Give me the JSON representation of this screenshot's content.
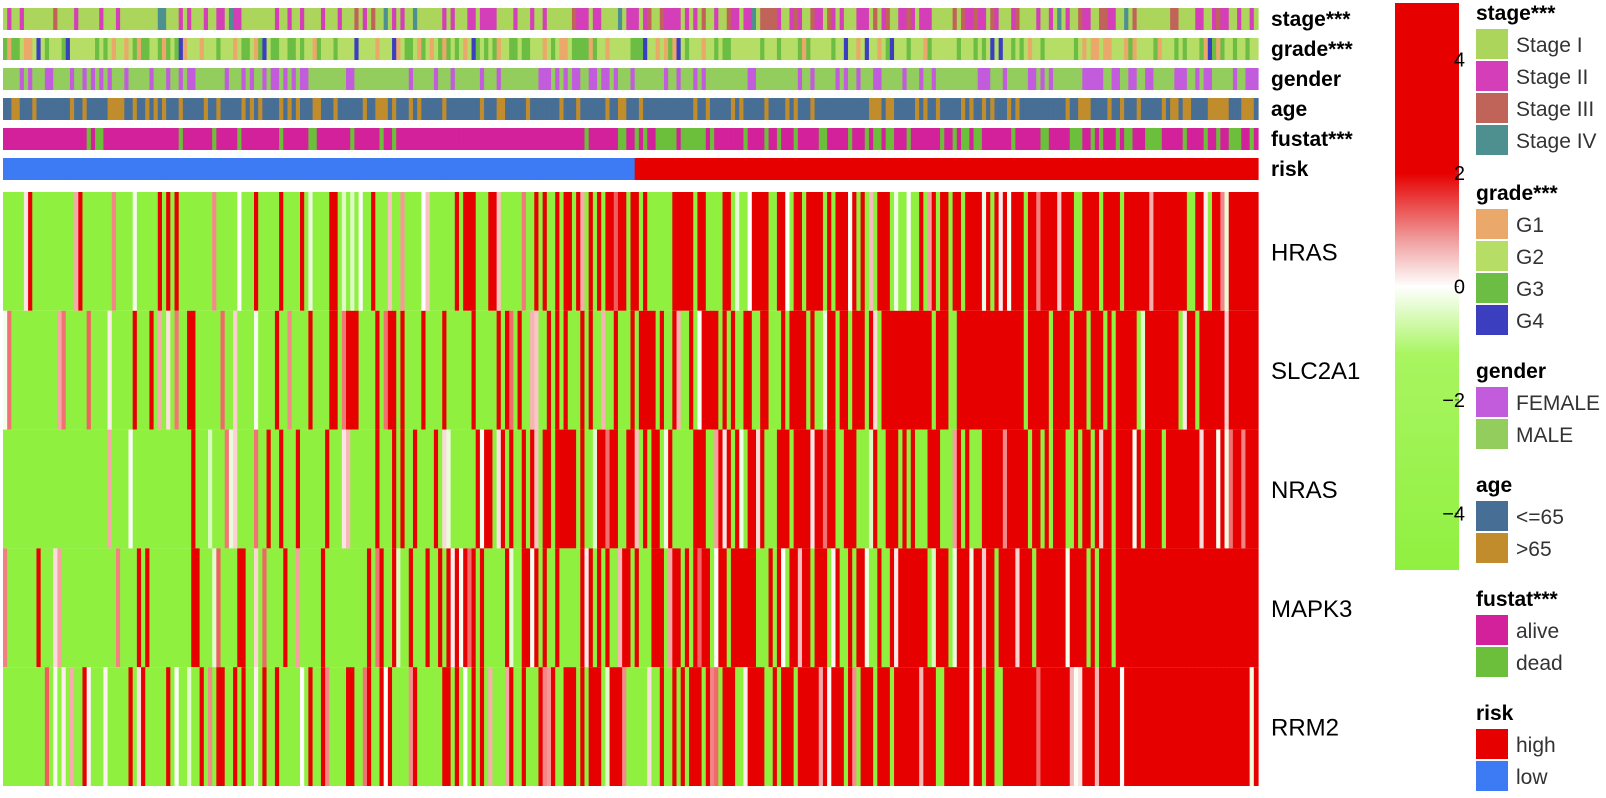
{
  "chart_data": {
    "type": "heatmap",
    "annotation_tracks": [
      {
        "label": "stage***",
        "key": "stage"
      },
      {
        "label": "grade***",
        "key": "grade"
      },
      {
        "label": "gender",
        "key": "gender"
      },
      {
        "label": "age",
        "key": "age"
      },
      {
        "label": "fustat***",
        "key": "fustat"
      },
      {
        "label": "risk",
        "key": "risk"
      }
    ],
    "genes": [
      "HRAS",
      "SLC2A1",
      "NRAS",
      "MAPK3",
      "RRM2"
    ],
    "samples": {
      "count": 300,
      "low_risk_count": 151,
      "high_risk_count": 149
    },
    "color_scale": {
      "min": -5,
      "max": 5,
      "ticks": [
        4,
        2,
        0,
        -2,
        -4
      ],
      "tick_labels": [
        "4",
        "2",
        "0",
        "−2",
        "−4"
      ],
      "low_color": "#90f040",
      "mid_color": "#ffffff",
      "high_color": "#e60000"
    },
    "legends": [
      {
        "title": "stage***",
        "key": "stage",
        "items": [
          {
            "label": "Stage I",
            "color": "#acd55c"
          },
          {
            "label": "Stage II",
            "color": "#d43eb8"
          },
          {
            "label": "Stage III",
            "color": "#c0645a"
          },
          {
            "label": "Stage IV",
            "color": "#4e8f8f"
          }
        ]
      },
      {
        "title": "grade***",
        "key": "grade",
        "items": [
          {
            "label": "G1",
            "color": "#eaa86a"
          },
          {
            "label": "G2",
            "color": "#b6dd66"
          },
          {
            "label": "G3",
            "color": "#6bbd44"
          },
          {
            "label": "G4",
            "color": "#3b3fbf"
          }
        ]
      },
      {
        "title": "gender",
        "key": "gender",
        "items": [
          {
            "label": "FEMALE",
            "color": "#c25cdc"
          },
          {
            "label": "MALE",
            "color": "#92cd5e"
          }
        ]
      },
      {
        "title": "age",
        "key": "age",
        "items": [
          {
            "label": "<=65",
            "color": "#476e94"
          },
          {
            "label": ">65",
            "color": "#c08c2c"
          }
        ]
      },
      {
        "title": "fustat***",
        "key": "fustat",
        "items": [
          {
            "label": "alive",
            "color": "#d3219b"
          },
          {
            "label": "dead",
            "color": "#6cbf3a"
          }
        ]
      },
      {
        "title": "risk",
        "key": "risk",
        "items": [
          {
            "label": "high",
            "color": "#e60000"
          },
          {
            "label": "low",
            "color": "#3d7bf5"
          }
        ]
      }
    ]
  }
}
